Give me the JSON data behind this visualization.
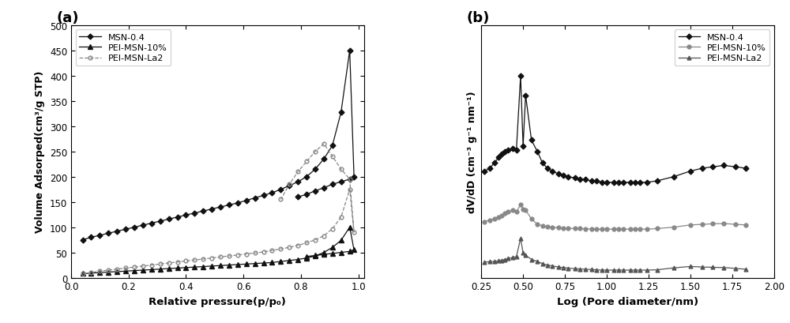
{
  "panel_a": {
    "xlabel": "Relative pressure(p/p₀)",
    "ylabel": "Volume Adsorped(cm³/g STP)",
    "ylim": [
      0,
      500
    ],
    "xlim": [
      0.0,
      1.02
    ],
    "yticks": [
      0,
      50,
      100,
      150,
      200,
      250,
      300,
      350,
      400,
      450,
      500
    ],
    "xticks": [
      0.0,
      0.2,
      0.4,
      0.6,
      0.8,
      1.0
    ],
    "msn04": {
      "label": "MSN-0.4",
      "color": "#111111",
      "marker": "D",
      "x": [
        0.04,
        0.07,
        0.1,
        0.13,
        0.16,
        0.19,
        0.22,
        0.25,
        0.28,
        0.31,
        0.34,
        0.37,
        0.4,
        0.43,
        0.46,
        0.49,
        0.52,
        0.55,
        0.58,
        0.61,
        0.64,
        0.67,
        0.7,
        0.73,
        0.76,
        0.79,
        0.82,
        0.85,
        0.88,
        0.91,
        0.94,
        0.97,
        0.985,
        0.97,
        0.94,
        0.91,
        0.88,
        0.85,
        0.82,
        0.79
      ],
      "y": [
        75,
        80,
        84,
        88,
        92,
        96,
        100,
        104,
        108,
        112,
        116,
        120,
        124,
        128,
        132,
        136,
        140,
        144,
        148,
        153,
        158,
        163,
        168,
        175,
        182,
        190,
        200,
        215,
        235,
        262,
        328,
        450,
        200,
        195,
        190,
        185,
        178,
        172,
        165,
        160
      ]
    },
    "pei10": {
      "label": "PEI-MSN-10%",
      "color": "#111111",
      "marker": "^",
      "x": [
        0.04,
        0.07,
        0.1,
        0.13,
        0.16,
        0.19,
        0.22,
        0.25,
        0.28,
        0.31,
        0.34,
        0.37,
        0.4,
        0.43,
        0.46,
        0.49,
        0.52,
        0.55,
        0.58,
        0.61,
        0.64,
        0.67,
        0.7,
        0.73,
        0.76,
        0.79,
        0.82,
        0.85,
        0.88,
        0.91,
        0.94,
        0.97,
        0.985,
        0.97,
        0.94,
        0.91,
        0.88,
        0.85,
        0.82
      ],
      "y": [
        8,
        9,
        10,
        11,
        12,
        13,
        14,
        15,
        16,
        17,
        18,
        19,
        20,
        21,
        22,
        23,
        24,
        25,
        26,
        27,
        28,
        29,
        30,
        32,
        34,
        36,
        39,
        43,
        50,
        60,
        74,
        100,
        55,
        52,
        50,
        48,
        46,
        44,
        42
      ]
    },
    "peila2": {
      "label": "PEI-MSN-La2",
      "color": "#888888",
      "marker": "o",
      "linestyle": "--",
      "x": [
        0.04,
        0.07,
        0.1,
        0.13,
        0.16,
        0.19,
        0.22,
        0.25,
        0.28,
        0.31,
        0.34,
        0.37,
        0.4,
        0.43,
        0.46,
        0.49,
        0.52,
        0.55,
        0.58,
        0.61,
        0.64,
        0.67,
        0.7,
        0.73,
        0.76,
        0.79,
        0.82,
        0.85,
        0.88,
        0.91,
        0.94,
        0.97,
        0.985,
        0.97,
        0.94,
        0.91,
        0.88,
        0.85,
        0.82,
        0.79,
        0.76,
        0.73
      ],
      "y": [
        8,
        10,
        13,
        15,
        17,
        19,
        21,
        23,
        25,
        27,
        29,
        31,
        33,
        35,
        37,
        39,
        41,
        43,
        45,
        47,
        49,
        51,
        54,
        57,
        60,
        64,
        69,
        75,
        83,
        97,
        120,
        175,
        90,
        195,
        215,
        240,
        265,
        250,
        230,
        210,
        185,
        155
      ]
    }
  },
  "panel_b": {
    "xlabel": "Log (Pore diameter/nm)",
    "ylabel": "dV/dD (cm⁻³ g⁻¹ nm⁻¹)",
    "xlim": [
      0.25,
      2.0
    ],
    "xticks": [
      0.25,
      0.5,
      0.75,
      1.0,
      1.25,
      1.5,
      1.75,
      2.0
    ],
    "msn04": {
      "label": "MSN-0.4",
      "color": "#111111",
      "marker": "D",
      "x": [
        0.27,
        0.3,
        0.33,
        0.355,
        0.37,
        0.39,
        0.41,
        0.44,
        0.46,
        0.485,
        0.5,
        0.515,
        0.55,
        0.585,
        0.615,
        0.645,
        0.675,
        0.71,
        0.74,
        0.77,
        0.81,
        0.84,
        0.87,
        0.91,
        0.94,
        0.97,
        1.0,
        1.04,
        1.07,
        1.1,
        1.14,
        1.17,
        1.2,
        1.24,
        1.3,
        1.4,
        1.5,
        1.57,
        1.63,
        1.7,
        1.77,
        1.83
      ],
      "y": [
        3.8,
        3.9,
        4.1,
        4.3,
        4.4,
        4.5,
        4.55,
        4.6,
        4.55,
        7.2,
        4.7,
        6.5,
        4.9,
        4.5,
        4.1,
        3.9,
        3.8,
        3.7,
        3.65,
        3.6,
        3.55,
        3.5,
        3.5,
        3.45,
        3.45,
        3.4,
        3.4,
        3.4,
        3.4,
        3.4,
        3.4,
        3.4,
        3.4,
        3.4,
        3.45,
        3.6,
        3.8,
        3.9,
        3.95,
        4.0,
        3.95,
        3.9
      ]
    },
    "pei10": {
      "label": "PEI-MSN-10%",
      "color": "#888888",
      "marker": "o",
      "x": [
        0.27,
        0.3,
        0.33,
        0.355,
        0.37,
        0.39,
        0.41,
        0.44,
        0.46,
        0.485,
        0.5,
        0.515,
        0.55,
        0.585,
        0.615,
        0.645,
        0.675,
        0.71,
        0.74,
        0.77,
        0.81,
        0.84,
        0.87,
        0.91,
        0.94,
        0.97,
        1.0,
        1.04,
        1.07,
        1.1,
        1.14,
        1.17,
        1.2,
        1.24,
        1.3,
        1.4,
        1.5,
        1.57,
        1.63,
        1.7,
        1.77,
        1.83
      ],
      "y": [
        2.0,
        2.05,
        2.1,
        2.15,
        2.2,
        2.3,
        2.35,
        2.4,
        2.35,
        2.6,
        2.45,
        2.4,
        2.1,
        1.9,
        1.85,
        1.82,
        1.8,
        1.78,
        1.77,
        1.76,
        1.75,
        1.75,
        1.74,
        1.74,
        1.73,
        1.73,
        1.73,
        1.73,
        1.73,
        1.73,
        1.73,
        1.73,
        1.73,
        1.73,
        1.75,
        1.8,
        1.88,
        1.9,
        1.92,
        1.93,
        1.9,
        1.88
      ]
    },
    "peila2": {
      "label": "PEI-MSN-La2",
      "color": "#555555",
      "marker": "^",
      "x": [
        0.27,
        0.3,
        0.33,
        0.355,
        0.37,
        0.39,
        0.41,
        0.44,
        0.46,
        0.485,
        0.5,
        0.515,
        0.55,
        0.585,
        0.615,
        0.645,
        0.675,
        0.71,
        0.74,
        0.77,
        0.81,
        0.84,
        0.87,
        0.91,
        0.94,
        0.97,
        1.0,
        1.04,
        1.07,
        1.1,
        1.14,
        1.17,
        1.2,
        1.24,
        1.3,
        1.4,
        1.5,
        1.57,
        1.63,
        1.7,
        1.77,
        1.83
      ],
      "y": [
        0.55,
        0.57,
        0.58,
        0.6,
        0.62,
        0.65,
        0.68,
        0.72,
        0.75,
        1.4,
        0.88,
        0.8,
        0.65,
        0.58,
        0.5,
        0.45,
        0.42,
        0.38,
        0.36,
        0.34,
        0.32,
        0.31,
        0.3,
        0.29,
        0.28,
        0.27,
        0.27,
        0.27,
        0.27,
        0.27,
        0.27,
        0.27,
        0.27,
        0.27,
        0.28,
        0.35,
        0.4,
        0.38,
        0.37,
        0.36,
        0.33,
        0.3
      ]
    }
  }
}
